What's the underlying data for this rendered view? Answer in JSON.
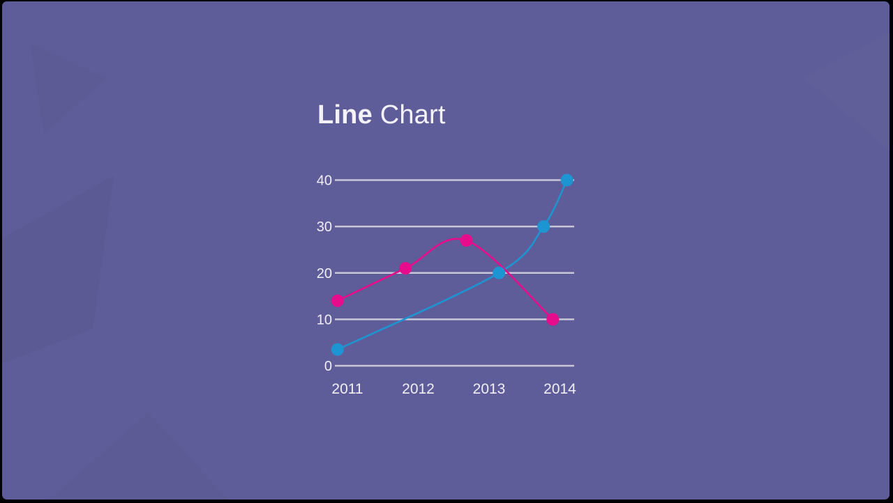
{
  "slide": {
    "background_color": "#5f5d99",
    "frame_color": "#000000",
    "title": {
      "emphasis": "Line",
      "rest": "Chart",
      "text_color": "#f3f2f8"
    }
  },
  "chart_data": {
    "type": "line",
    "title": "Line Chart",
    "xlabel": "",
    "ylabel": "",
    "x_ticks": [
      "2011",
      "2012",
      "2013",
      "2014"
    ],
    "y_ticks": [
      0,
      10,
      20,
      30,
      40
    ],
    "xlim": [
      2010.8,
      2014.2
    ],
    "ylim": [
      0,
      40
    ],
    "grid": "horizontal-only",
    "legend_position": "none",
    "axis_text_color": "#f0eff6",
    "gridline_color": "#c8c7d8",
    "point_radius": 9,
    "line_width": 2.6,
    "series": [
      {
        "name": "blue",
        "color": "#1d95d2",
        "points": [
          {
            "x": 2010.86,
            "y": 3.5
          },
          {
            "x": 2013.14,
            "y": 20
          },
          {
            "x": 2013.77,
            "y": 30
          },
          {
            "x": 2014.1,
            "y": 40
          }
        ]
      },
      {
        "name": "pink",
        "color": "#e60c8c",
        "points": [
          {
            "x": 2010.86,
            "y": 14
          },
          {
            "x": 2011.82,
            "y": 21
          },
          {
            "x": 2012.68,
            "y": 27
          },
          {
            "x": 2013.9,
            "y": 10
          }
        ]
      }
    ]
  }
}
